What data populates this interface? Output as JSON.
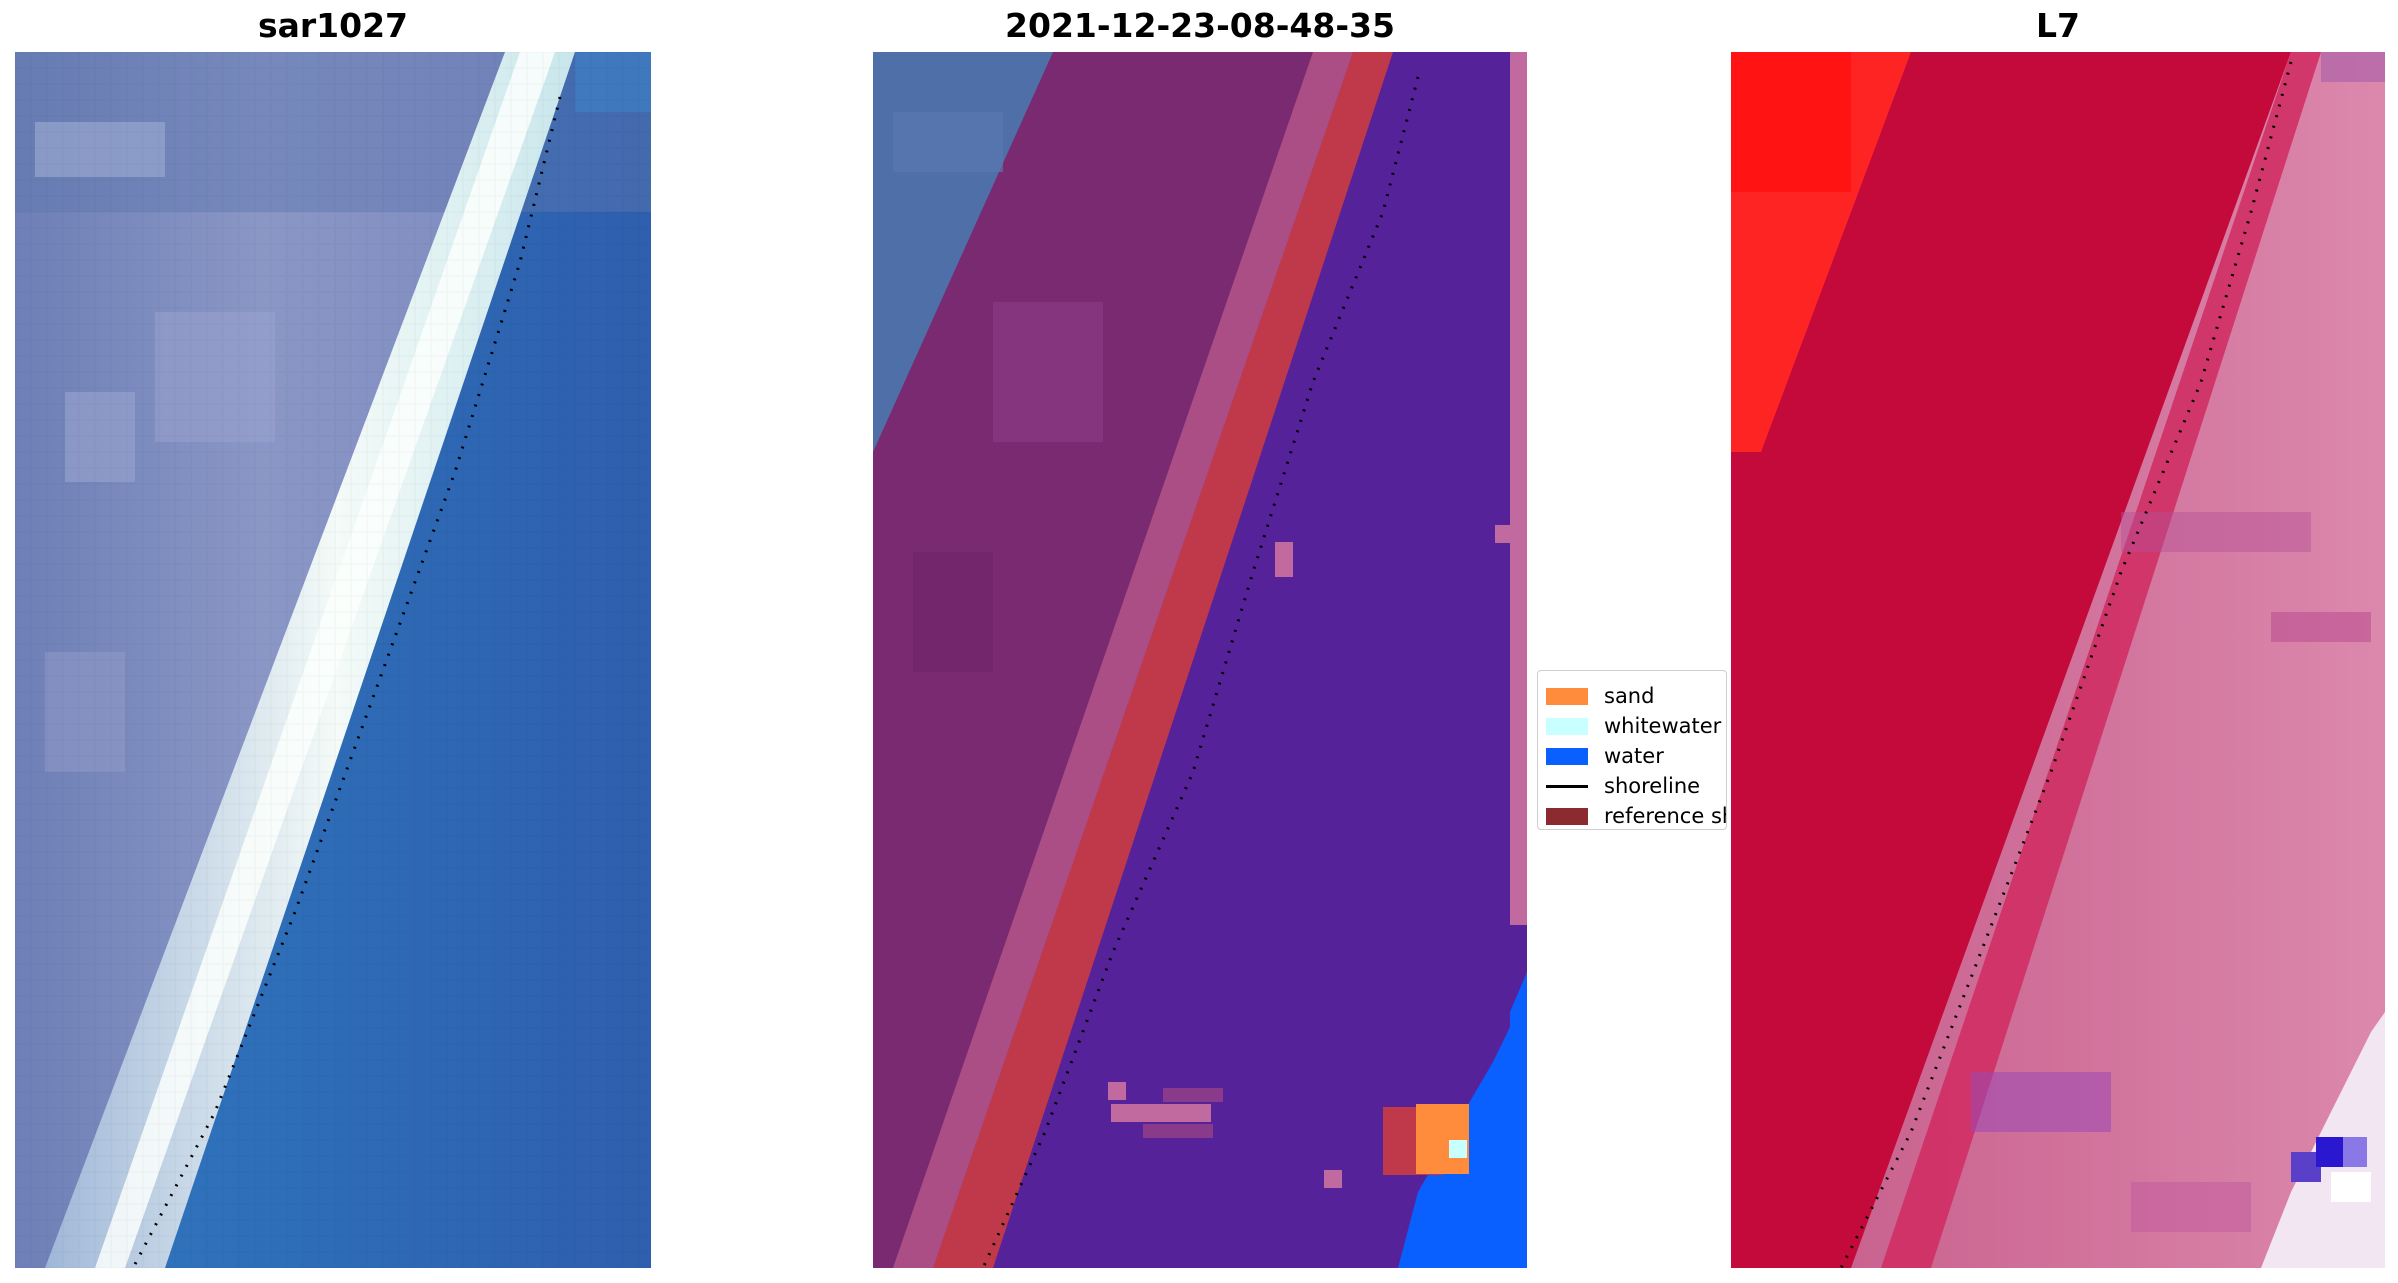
{
  "panels": [
    {
      "title": "sar1027"
    },
    {
      "title": "2021-12-23-08-48-35"
    },
    {
      "title": "L7"
    }
  ],
  "legend": {
    "items": [
      {
        "label": "sand",
        "color": "#ff8c3c",
        "kind": "patch"
      },
      {
        "label": "whitewater",
        "color": "#c8ffff",
        "kind": "patch"
      },
      {
        "label": "water",
        "color": "#0a5fff",
        "kind": "patch"
      },
      {
        "label": "shoreline",
        "color": "#000000",
        "kind": "line"
      },
      {
        "label": "reference sh",
        "color": "#8b2b2f",
        "kind": "patch"
      }
    ]
  },
  "colors": {
    "rgb_land": "#7f8fbf",
    "rgb_ocean": "#2f6fb8",
    "beach_white": "#f2f6f6",
    "class_water": "#55229a",
    "class_sand_edge": "#c0394a",
    "class_land": "#7a2a70",
    "ndwi_land": "#c40a3a",
    "ndwi_water": "#cc6a95",
    "ndwi_high": "#ff2424"
  }
}
